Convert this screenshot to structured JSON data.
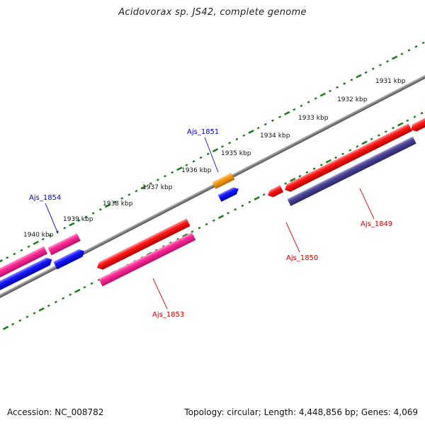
{
  "title": "Acidovorax sp. JS42, complete genome",
  "footer": {
    "accession": "Accession: NC_008782",
    "summary": "Topology: circular; Length: 4,448,856 bp; Genes: 4,069"
  },
  "colors": {
    "backbone": "#7f7f7f",
    "tick": "#1e7d1e",
    "red_gene": "#ee0000",
    "pink_gene": "#ee1a8c",
    "blue_gene": "#0000ee",
    "slate_gene": "#463c8c",
    "orange_gene": "#f08c00",
    "label_blue": "#0000cc",
    "label_red": "#cc0000"
  },
  "ruler_labels": [
    "1931 kbp",
    "1932 kbp",
    "1933 kbp",
    "1934 kbp",
    "1935 kbp",
    "1936 kbp",
    "1937 kbp",
    "1938 kbp",
    "1939 kbp",
    "1940 kbp"
  ],
  "gene_labels": [
    {
      "id": "Ajs_1851",
      "strand": "plus"
    },
    {
      "id": "Ajs_1854",
      "strand": "plus"
    },
    {
      "id": "Ajs_1849",
      "strand": "minus"
    },
    {
      "id": "Ajs_1850",
      "strand": "minus"
    },
    {
      "id": "Ajs_1853",
      "strand": "minus"
    }
  ]
}
